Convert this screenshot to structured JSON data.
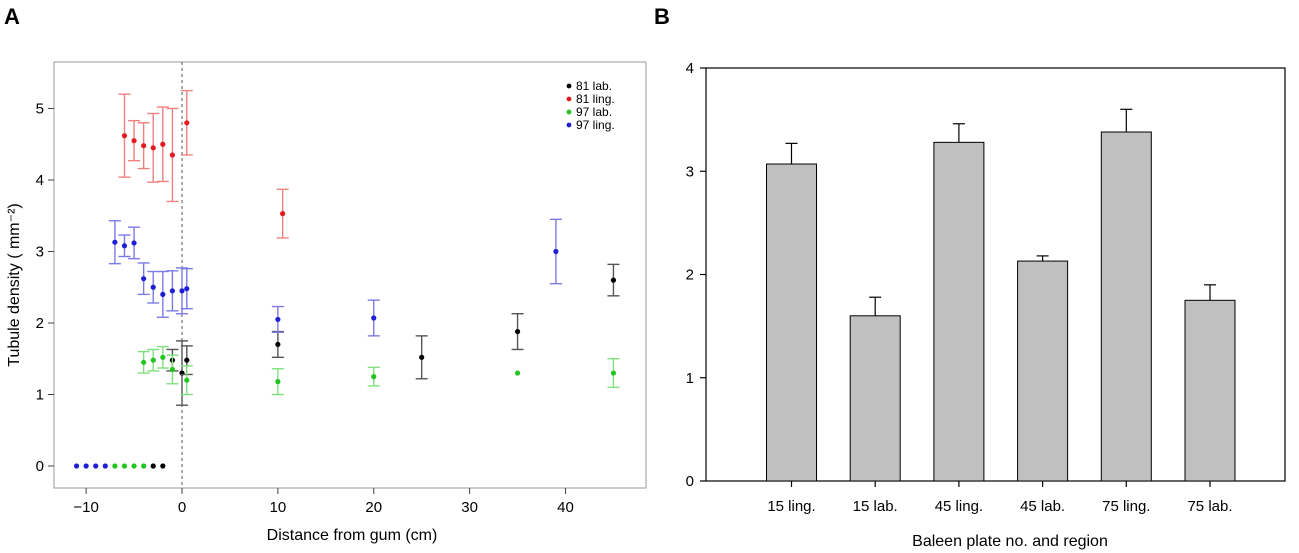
{
  "panels": {
    "a_label": "A",
    "b_label": "B"
  },
  "chart_data": [
    {
      "type": "scatter",
      "panel": "A",
      "title": "",
      "xlabel": "Distance from gum (cm)",
      "ylabel": "Tubule density ( mm⁻²)",
      "xlim": [
        -12,
        48
      ],
      "ylim": [
        -0.25,
        5.5
      ],
      "xticks": [
        -10,
        0,
        10,
        20,
        30,
        40
      ],
      "xtick_labels": [
        "−10",
        "0",
        "10",
        "20",
        "30",
        "40"
      ],
      "yticks": [
        0,
        1,
        2,
        3,
        4,
        5
      ],
      "ytick_labels": [
        "0",
        "1",
        "2",
        "3",
        "4",
        "5"
      ],
      "reference_line_x": 0,
      "legend_position": "top-right",
      "series": [
        {
          "name": "81 lab.",
          "color": "#000000",
          "bar_color": "#555555",
          "points": [
            {
              "x": -3,
              "y": 0,
              "err": 0
            },
            {
              "x": -2,
              "y": 0,
              "err": 0
            },
            {
              "x": -1,
              "y": 1.48,
              "err": 0.15
            },
            {
              "x": 0,
              "y": 1.3,
              "err": 0.45
            },
            {
              "x": 0.5,
              "y": 1.48,
              "err": 0.2
            },
            {
              "x": 10,
              "y": 1.7,
              "err": 0.18
            },
            {
              "x": 25,
              "y": 1.52,
              "err": 0.3
            },
            {
              "x": 35,
              "y": 1.88,
              "err": 0.25
            },
            {
              "x": 45,
              "y": 2.6,
              "err": 0.22
            }
          ]
        },
        {
          "name": "81 ling.",
          "color": "#e41a1c",
          "bar_color": "#ef8080",
          "points": [
            {
              "x": -6,
              "y": 4.62,
              "err": 0.58
            },
            {
              "x": -5,
              "y": 4.55,
              "err": 0.28
            },
            {
              "x": -4,
              "y": 4.48,
              "err": 0.32
            },
            {
              "x": -3,
              "y": 4.45,
              "err": 0.48
            },
            {
              "x": -2,
              "y": 4.5,
              "err": 0.52
            },
            {
              "x": -1,
              "y": 4.35,
              "err": 0.65
            },
            {
              "x": 0.5,
              "y": 4.8,
              "err": 0.45
            },
            {
              "x": 10.5,
              "y": 3.53,
              "err": 0.34
            }
          ]
        },
        {
          "name": "97 lab.",
          "color": "#22c41e",
          "bar_color": "#80e07e",
          "points": [
            {
              "x": -7,
              "y": 0,
              "err": 0
            },
            {
              "x": -6,
              "y": 0,
              "err": 0
            },
            {
              "x": -5,
              "y": 0,
              "err": 0
            },
            {
              "x": -4,
              "y": 0,
              "err": 0
            },
            {
              "x": -4,
              "y": 1.45,
              "err": 0.15
            },
            {
              "x": -3,
              "y": 1.48,
              "err": 0.15
            },
            {
              "x": -2,
              "y": 1.52,
              "err": 0.15
            },
            {
              "x": -1,
              "y": 1.35,
              "err": 0.2
            },
            {
              "x": 0.5,
              "y": 1.2,
              "err": 0.2
            },
            {
              "x": 10,
              "y": 1.18,
              "err": 0.18
            },
            {
              "x": 20,
              "y": 1.25,
              "err": 0.13
            },
            {
              "x": 35,
              "y": 1.3,
              "err": 0
            },
            {
              "x": 45,
              "y": 1.3,
              "err": 0.2
            }
          ]
        },
        {
          "name": "97 ling.",
          "color": "#1f1fd6",
          "bar_color": "#7b7be6",
          "points": [
            {
              "x": -11,
              "y": 0,
              "err": 0
            },
            {
              "x": -10,
              "y": 0,
              "err": 0
            },
            {
              "x": -9,
              "y": 0,
              "err": 0
            },
            {
              "x": -8,
              "y": 0,
              "err": 0
            },
            {
              "x": -7,
              "y": 3.13,
              "err": 0.3
            },
            {
              "x": -6,
              "y": 3.08,
              "err": 0.15
            },
            {
              "x": -5,
              "y": 3.12,
              "err": 0.22
            },
            {
              "x": -4,
              "y": 2.62,
              "err": 0.22
            },
            {
              "x": -3,
              "y": 2.5,
              "err": 0.22
            },
            {
              "x": -2,
              "y": 2.4,
              "err": 0.32
            },
            {
              "x": -1,
              "y": 2.45,
              "err": 0.28
            },
            {
              "x": 0,
              "y": 2.45,
              "err": 0.32
            },
            {
              "x": 0.5,
              "y": 2.48,
              "err": 0.28
            },
            {
              "x": 10,
              "y": 2.05,
              "err": 0.18
            },
            {
              "x": 20,
              "y": 2.07,
              "err": 0.25
            },
            {
              "x": 39,
              "y": 3.0,
              "err": 0.45
            }
          ]
        }
      ]
    },
    {
      "type": "bar",
      "panel": "B",
      "title": "",
      "xlabel": "Baleen plate no. and region",
      "ylabel": "",
      "ylim": [
        0,
        4
      ],
      "yticks": [
        0,
        1,
        2,
        3,
        4
      ],
      "ytick_labels": [
        "0",
        "1",
        "2",
        "3",
        "4"
      ],
      "categories": [
        "15 ling.",
        "15 lab.",
        "45 ling.",
        "45 lab.",
        "75 ling.",
        "75 lab."
      ],
      "values": [
        3.07,
        1.6,
        3.28,
        2.13,
        3.38,
        1.75
      ],
      "errors": [
        0.2,
        0.18,
        0.18,
        0.05,
        0.22,
        0.15
      ],
      "bar_color": "#c0c0c0",
      "edge_color": "#000000"
    }
  ]
}
